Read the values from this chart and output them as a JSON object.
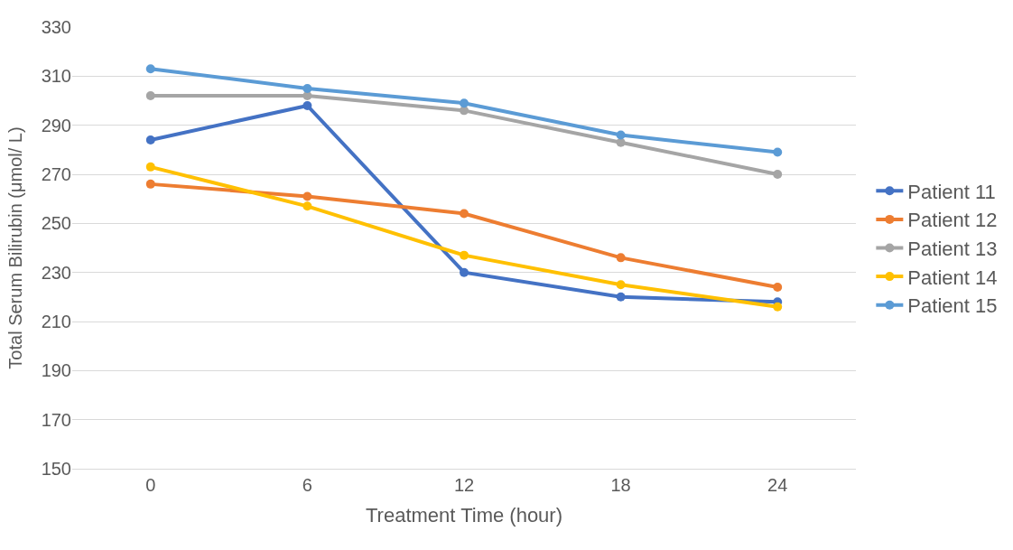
{
  "chart_data": {
    "type": "line",
    "xlabel": "Treatment Time (hour)",
    "ylabel": "Total Serum Bilirubin (μmol/ L)",
    "categories": [
      "0",
      "6",
      "12",
      "18",
      "24"
    ],
    "series": [
      {
        "name": "Patient 11",
        "color": "#4472c4",
        "values": [
          284,
          298,
          230,
          220,
          218
        ]
      },
      {
        "name": "Patient 12",
        "color": "#ed7d31",
        "values": [
          266,
          261,
          254,
          236,
          224
        ]
      },
      {
        "name": "Patient 13",
        "color": "#a5a5a5",
        "values": [
          302,
          302,
          296,
          283,
          270
        ]
      },
      {
        "name": "Patient 14",
        "color": "#ffc000",
        "values": [
          273,
          257,
          237,
          225,
          216
        ]
      },
      {
        "name": "Patient 15",
        "color": "#5b9bd5",
        "values": [
          313,
          305,
          299,
          286,
          279
        ]
      }
    ],
    "ylim": [
      150,
      330
    ],
    "yticks": [
      150,
      170,
      190,
      210,
      230,
      250,
      270,
      290,
      310,
      330
    ],
    "grid": "y",
    "legend": "right",
    "marker": "circle",
    "line_style": "solid"
  }
}
